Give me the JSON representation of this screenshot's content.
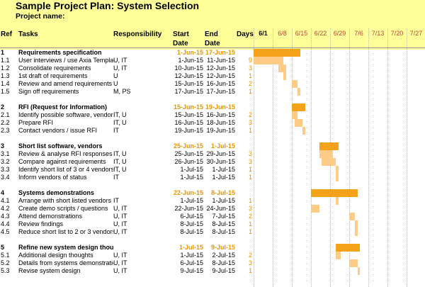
{
  "title": "Sample Project Plan: System Selection",
  "project_label": "Project name:",
  "columns": {
    "ref": "Ref",
    "tasks": "Tasks",
    "responsibility": "Responsibility",
    "start_1": "Start",
    "start_2": "Date",
    "end_1": "End",
    "end_2": "Date",
    "days": "Days"
  },
  "weeks": [
    "6/1",
    "6/8",
    "6/15",
    "6/22",
    "6/29",
    "7/6",
    "7/13",
    "7/20",
    "7/27"
  ],
  "colors": {
    "header_bg": "#ffff99",
    "section_bar": "#f5a21b",
    "task_bar": "#ffcc88",
    "date_accent": "#e69500"
  },
  "rows": [
    {
      "ref": "1",
      "task": "Requirements specification",
      "resp": "",
      "start": "1-Jun-15",
      "end": "17-Jun-15",
      "days": "",
      "section": true,
      "s": 0,
      "d": 17
    },
    {
      "ref": "1.1",
      "task": "User interviews / use Axia Template",
      "resp": "U, IT",
      "start": "1-Jun-15",
      "end": "11-Jun-15",
      "days": "9",
      "section": false,
      "s": 0,
      "d": 11
    },
    {
      "ref": "1.2",
      "task": "Consolidate requirements",
      "resp": "U, IT",
      "start": "10-Jun-15",
      "end": "12-Jun-15",
      "days": "3",
      "section": false,
      "s": 9,
      "d": 3
    },
    {
      "ref": "1.3",
      "task": "1st draft of requirements",
      "resp": "U",
      "start": "12-Jun-15",
      "end": "12-Jun-15",
      "days": "1",
      "section": false,
      "s": 11,
      "d": 1
    },
    {
      "ref": "1.4",
      "task": "Review and amend requirements",
      "resp": "U",
      "start": "15-Jun-15",
      "end": "16-Jun-15",
      "days": "2",
      "section": false,
      "s": 14,
      "d": 2
    },
    {
      "ref": "1.5",
      "task": "Sign off requirements",
      "resp": "M, PS",
      "start": "17-Jun-15",
      "end": "17-Jun-15",
      "days": "1",
      "section": false,
      "s": 16,
      "d": 1
    },
    {
      "ref": "2",
      "task": "RFI (Request for Information)",
      "resp": "",
      "start": "15-Jun-15",
      "end": "19-Jun-15",
      "days": "",
      "section": true,
      "s": 14,
      "d": 5
    },
    {
      "ref": "2.1",
      "task": "Identify possible software, vendors",
      "resp": "IT, U",
      "start": "15-Jun-15",
      "end": "16-Jun-15",
      "days": "2",
      "section": false,
      "s": 14,
      "d": 2
    },
    {
      "ref": "2.2",
      "task": "Prepare RFI",
      "resp": "IT, U",
      "start": "16-Jun-15",
      "end": "18-Jun-15",
      "days": "3",
      "section": false,
      "s": 15,
      "d": 3
    },
    {
      "ref": "2.3",
      "task": "Contact vendors / issue RFI",
      "resp": "IT",
      "start": "19-Jun-15",
      "end": "19-Jun-15",
      "days": "1",
      "section": false,
      "s": 18,
      "d": 1
    },
    {
      "ref": "3",
      "task": "Short list software, vendors",
      "resp": "",
      "start": "25-Jun-15",
      "end": "1-Jul-15",
      "days": "",
      "section": true,
      "s": 24,
      "d": 7
    },
    {
      "ref": "3.1",
      "task": "Review & analyse RFI responses",
      "resp": "IT, U",
      "start": "25-Jun-15",
      "end": "29-Jun-15",
      "days": "3",
      "section": false,
      "s": 24,
      "d": 5
    },
    {
      "ref": "3.2",
      "task": "Compare against requirements",
      "resp": "IT, U",
      "start": "26-Jun-15",
      "end": "30-Jun-15",
      "days": "3",
      "section": false,
      "s": 25,
      "d": 5
    },
    {
      "ref": "3.3",
      "task": "Identify short list of 3 or 4 vendors",
      "resp": "IT, U",
      "start": "1-Jul-15",
      "end": "1-Jul-15",
      "days": "1",
      "section": false,
      "s": 30,
      "d": 1
    },
    {
      "ref": "3.4",
      "task": "Inform vendors of status",
      "resp": "IT",
      "start": "1-Jul-15",
      "end": "1-Jul-15",
      "days": "1",
      "section": false,
      "s": 30,
      "d": 1
    },
    {
      "ref": "4",
      "task": "Systems demonstrations",
      "resp": "",
      "start": "22-Jun-15",
      "end": "8-Jul-15",
      "days": "",
      "section": true,
      "s": 21,
      "d": 17
    },
    {
      "ref": "4.1",
      "task": "Arrange with short listed vendors",
      "resp": "IT",
      "start": "1-Jul-15",
      "end": "1-Jul-15",
      "days": "1",
      "section": false,
      "s": 30,
      "d": 1
    },
    {
      "ref": "4.2",
      "task": "Create demo scripts / questions",
      "resp": "U, IT",
      "start": "22-Jun-15",
      "end": "24-Jun-15",
      "days": "3",
      "section": false,
      "s": 21,
      "d": 3
    },
    {
      "ref": "4.3",
      "task": "Attend demonstrations",
      "resp": "U, IT",
      "start": "6-Jul-15",
      "end": "7-Jul-15",
      "days": "2",
      "section": false,
      "s": 35,
      "d": 2
    },
    {
      "ref": "4.4",
      "task": "Review findings",
      "resp": "U, IT",
      "start": "8-Jul-15",
      "end": "8-Jul-15",
      "days": "1",
      "section": false,
      "s": 37,
      "d": 1
    },
    {
      "ref": "4.5",
      "task": "Reduce short list to 2 or 3 vendors",
      "resp": "U, IT",
      "start": "8-Jul-15",
      "end": "8-Jul-15",
      "days": "1",
      "section": false,
      "s": 37,
      "d": 1
    },
    {
      "ref": "5",
      "task": "Refine new system design thoughts",
      "resp": "",
      "start": "1-Jul-15",
      "end": "9-Jul-15",
      "days": "",
      "section": true,
      "s": 30,
      "d": 9
    },
    {
      "ref": "5.1",
      "task": "Additional design thoughts",
      "resp": "U, IT",
      "start": "1-Jul-15",
      "end": "2-Jul-15",
      "days": "2",
      "section": false,
      "s": 30,
      "d": 2
    },
    {
      "ref": "5.2",
      "task": "Details from systems demonstrations",
      "resp": "U, IT",
      "start": "6-Jul-15",
      "end": "8-Jul-15",
      "days": "3",
      "section": false,
      "s": 35,
      "d": 3
    },
    {
      "ref": "5.3",
      "task": "Revise system design",
      "resp": "U, IT",
      "start": "9-Jul-15",
      "end": "9-Jul-15",
      "days": "1",
      "section": false,
      "s": 38,
      "d": 1
    }
  ]
}
